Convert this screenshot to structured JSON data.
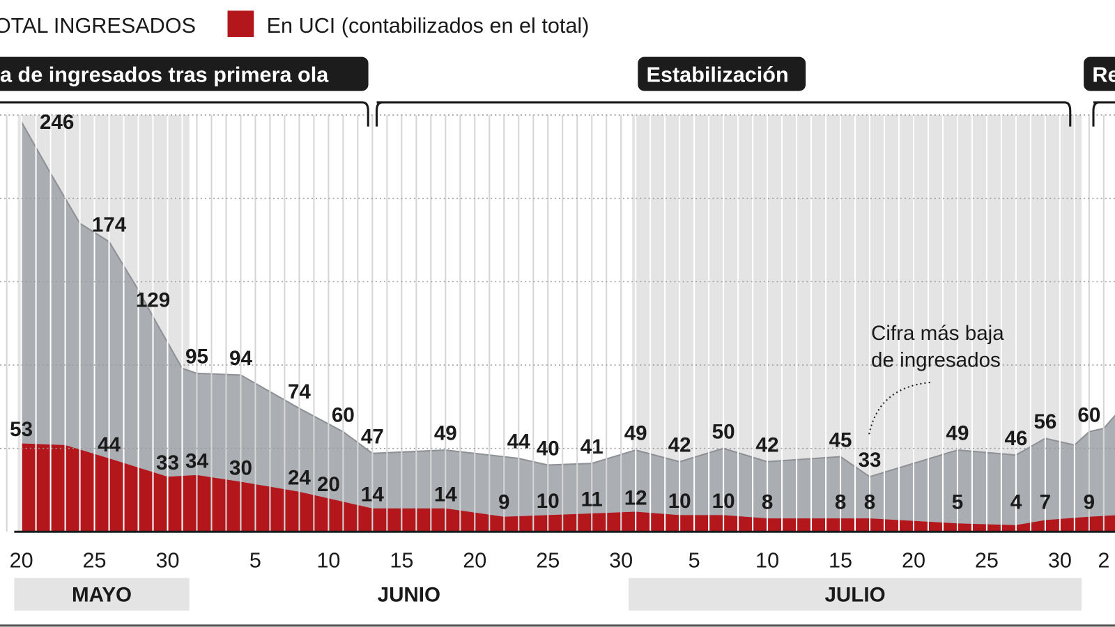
{
  "chart_data": {
    "type": "area",
    "legend": [
      {
        "label": "OTAL INGRESADOS",
        "color": "#a7abb0"
      },
      {
        "label": "En UCI (contabilizados en el total)",
        "color": "#b3161b"
      }
    ],
    "legend_placement": "top-left",
    "phases": [
      {
        "label": "a de ingresados tras primera ola",
        "start": "2020-05-20",
        "end": "2020-06-13"
      },
      {
        "label": "Estabilización",
        "start": "2020-06-13",
        "end": "2020-07-31"
      },
      {
        "label": "Re",
        "start": "2020-08-01",
        "end": "2020-08-03"
      }
    ],
    "x_ticks": [
      {
        "date": "2020-05-20",
        "label": "20"
      },
      {
        "date": "2020-05-25",
        "label": "25"
      },
      {
        "date": "2020-05-30",
        "label": "30"
      },
      {
        "date": "2020-06-05",
        "label": "5"
      },
      {
        "date": "2020-06-10",
        "label": "10"
      },
      {
        "date": "2020-06-15",
        "label": "15"
      },
      {
        "date": "2020-06-20",
        "label": "20"
      },
      {
        "date": "2020-06-25",
        "label": "25"
      },
      {
        "date": "2020-06-30",
        "label": "30"
      },
      {
        "date": "2020-07-05",
        "label": "5"
      },
      {
        "date": "2020-07-10",
        "label": "10"
      },
      {
        "date": "2020-07-15",
        "label": "15"
      },
      {
        "date": "2020-07-20",
        "label": "20"
      },
      {
        "date": "2020-07-25",
        "label": "25"
      },
      {
        "date": "2020-07-30",
        "label": "30"
      },
      {
        "date": "2020-08-02",
        "label": "2"
      }
    ],
    "months": [
      {
        "label": "MAYO",
        "start": "2020-05-20",
        "end": "2020-05-31",
        "shaded": true
      },
      {
        "label": "JUNIO",
        "start": "2020-06-01",
        "end": "2020-06-30",
        "shaded": false
      },
      {
        "label": "JULIO",
        "start": "2020-07-01",
        "end": "2020-07-31",
        "shaded": true
      }
    ],
    "xlim": [
      "2020-05-19",
      "2020-08-03"
    ],
    "ylim": [
      0,
      250
    ],
    "y_gridlines": [
      50,
      100,
      150,
      200,
      250
    ],
    "grid": true,
    "series": [
      {
        "name": "OTAL INGRESADOS",
        "points": [
          {
            "date": "2020-05-20",
            "value": 246,
            "label": "246"
          },
          {
            "date": "2020-05-22",
            "value": 215
          },
          {
            "date": "2020-05-24",
            "value": 185
          },
          {
            "date": "2020-05-26",
            "value": 174,
            "label": "174"
          },
          {
            "date": "2020-05-28",
            "value": 145
          },
          {
            "date": "2020-05-29",
            "value": 129,
            "label": "129"
          },
          {
            "date": "2020-05-31",
            "value": 98
          },
          {
            "date": "2020-06-01",
            "value": 95,
            "label": "95"
          },
          {
            "date": "2020-06-04",
            "value": 94,
            "label": "94"
          },
          {
            "date": "2020-06-08",
            "value": 74,
            "label": "74"
          },
          {
            "date": "2020-06-11",
            "value": 60,
            "label": "60"
          },
          {
            "date": "2020-06-13",
            "value": 47,
            "label": "47"
          },
          {
            "date": "2020-06-18",
            "value": 49,
            "label": "49"
          },
          {
            "date": "2020-06-23",
            "value": 44,
            "label": "44"
          },
          {
            "date": "2020-06-25",
            "value": 40,
            "label": "40"
          },
          {
            "date": "2020-06-28",
            "value": 41,
            "label": "41"
          },
          {
            "date": "2020-07-01",
            "value": 49,
            "label": "49"
          },
          {
            "date": "2020-07-04",
            "value": 42,
            "label": "42"
          },
          {
            "date": "2020-07-07",
            "value": 50,
            "label": "50"
          },
          {
            "date": "2020-07-10",
            "value": 42,
            "label": "42"
          },
          {
            "date": "2020-07-15",
            "value": 45,
            "label": "45"
          },
          {
            "date": "2020-07-17",
            "value": 33,
            "label": "33"
          },
          {
            "date": "2020-07-23",
            "value": 49,
            "label": "49"
          },
          {
            "date": "2020-07-27",
            "value": 46,
            "label": "46"
          },
          {
            "date": "2020-07-29",
            "value": 56,
            "label": "56"
          },
          {
            "date": "2020-07-31",
            "value": 52
          },
          {
            "date": "2020-08-01",
            "value": 60,
            "label": "60"
          },
          {
            "date": "2020-08-02",
            "value": 62
          },
          {
            "date": "2020-08-03",
            "value": 72
          }
        ]
      },
      {
        "name": "En UCI (contabilizados en el total)",
        "points": [
          {
            "date": "2020-05-20",
            "value": 53,
            "label": "53"
          },
          {
            "date": "2020-05-23",
            "value": 52
          },
          {
            "date": "2020-05-26",
            "value": 44,
            "label": "44"
          },
          {
            "date": "2020-05-30",
            "value": 33,
            "label": "33"
          },
          {
            "date": "2020-06-01",
            "value": 34,
            "label": "34"
          },
          {
            "date": "2020-06-04",
            "value": 30,
            "label": "30"
          },
          {
            "date": "2020-06-08",
            "value": 24,
            "label": "24"
          },
          {
            "date": "2020-06-10",
            "value": 20,
            "label": "20"
          },
          {
            "date": "2020-06-13",
            "value": 14,
            "label": "14"
          },
          {
            "date": "2020-06-18",
            "value": 14,
            "label": "14"
          },
          {
            "date": "2020-06-22",
            "value": 9,
            "label": "9"
          },
          {
            "date": "2020-06-25",
            "value": 10,
            "label": "10"
          },
          {
            "date": "2020-06-28",
            "value": 11,
            "label": "11"
          },
          {
            "date": "2020-07-01",
            "value": 12,
            "label": "12"
          },
          {
            "date": "2020-07-04",
            "value": 10,
            "label": "10"
          },
          {
            "date": "2020-07-07",
            "value": 10,
            "label": "10"
          },
          {
            "date": "2020-07-10",
            "value": 8,
            "label": "8"
          },
          {
            "date": "2020-07-15",
            "value": 8,
            "label": "8"
          },
          {
            "date": "2020-07-17",
            "value": 8,
            "label": "8"
          },
          {
            "date": "2020-07-23",
            "value": 5,
            "label": "5"
          },
          {
            "date": "2020-07-27",
            "value": 4,
            "label": "4"
          },
          {
            "date": "2020-07-29",
            "value": 7,
            "label": "7"
          },
          {
            "date": "2020-08-01",
            "value": 9,
            "label": "9"
          },
          {
            "date": "2020-08-03",
            "value": 10
          }
        ]
      }
    ],
    "annotations": [
      {
        "lines": [
          "Cifra más baja",
          "de ingresados"
        ],
        "target_date": "2020-07-17",
        "target_value": 33
      }
    ]
  }
}
